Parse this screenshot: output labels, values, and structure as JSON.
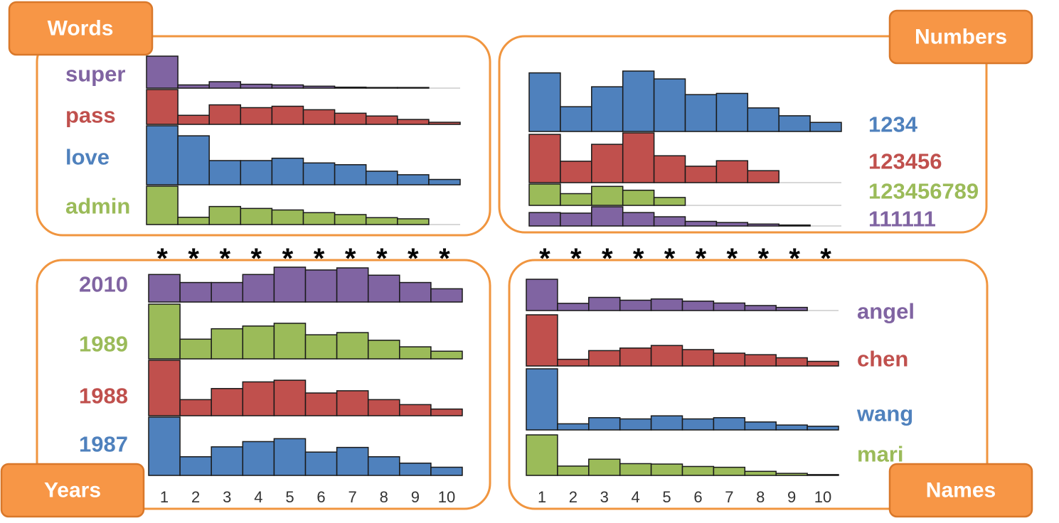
{
  "colors": {
    "purple": "#8064a2",
    "red": "#c0504d",
    "blue": "#4f81bd",
    "green": "#9bbb59",
    "tag_fill": "#f79646",
    "frame": "#f0953f"
  },
  "chart_data": [
    {
      "type": "bar",
      "panel": "words",
      "tag": "Words",
      "categories": [
        "1",
        "2",
        "3",
        "4",
        "5",
        "6",
        "7",
        "8",
        "9",
        "10"
      ],
      "significance_marks": [
        "*",
        "*",
        "*",
        "*",
        "*",
        "*",
        "*",
        "*",
        "*",
        "*"
      ],
      "series": [
        {
          "name": "super",
          "color": "#8064a2",
          "values": [
            1.0,
            0.1,
            0.2,
            0.12,
            0.1,
            0.06,
            0.03,
            0.02,
            0.02,
            0
          ]
        },
        {
          "name": "pass",
          "color": "#c0504d",
          "values": [
            1.0,
            0.26,
            0.56,
            0.48,
            0.52,
            0.42,
            0.32,
            0.24,
            0.14,
            0.06
          ]
        },
        {
          "name": "love",
          "color": "#4f81bd",
          "values": [
            1.0,
            0.83,
            0.41,
            0.41,
            0.45,
            0.37,
            0.34,
            0.23,
            0.17,
            0.09
          ]
        },
        {
          "name": "admin",
          "color": "#9bbb59",
          "values": [
            1.0,
            0.19,
            0.47,
            0.42,
            0.38,
            0.31,
            0.26,
            0.18,
            0.15,
            0
          ]
        }
      ]
    },
    {
      "type": "bar",
      "panel": "numbers",
      "tag": "Numbers",
      "categories": [
        "1",
        "2",
        "3",
        "4",
        "5",
        "6",
        "7",
        "8",
        "9",
        "10"
      ],
      "significance_marks": [
        "*",
        "*",
        "*",
        "*",
        "*",
        "*",
        "*",
        "*",
        "*",
        "*"
      ],
      "series": [
        {
          "name": "1234",
          "color": "#4f81bd",
          "values": [
            0.97,
            0.41,
            0.74,
            1.0,
            0.87,
            0.61,
            0.63,
            0.39,
            0.26,
            0.15
          ]
        },
        {
          "name": "123456",
          "color": "#c0504d",
          "values": [
            0.97,
            0.43,
            0.77,
            1.0,
            0.54,
            0.33,
            0.44,
            0.24,
            0,
            0
          ]
        },
        {
          "name": "123456789",
          "color": "#9bbb59",
          "values": [
            1.0,
            0.55,
            0.89,
            0.71,
            0.37,
            0,
            0,
            0,
            0,
            0
          ]
        },
        {
          "name": "111111",
          "color": "#8064a2",
          "values": [
            0.7,
            0.67,
            1.0,
            0.7,
            0.48,
            0.24,
            0.18,
            0.1,
            0.05,
            0
          ]
        }
      ]
    },
    {
      "type": "bar",
      "panel": "years",
      "tag": "Years",
      "categories": [
        "1",
        "2",
        "3",
        "4",
        "5",
        "6",
        "7",
        "8",
        "9",
        "10"
      ],
      "series": [
        {
          "name": "2010",
          "color": "#8064a2",
          "values": [
            0.79,
            0.56,
            0.56,
            0.79,
            1.0,
            0.92,
            0.98,
            0.77,
            0.56,
            0.38
          ]
        },
        {
          "name": "1989",
          "color": "#9bbb59",
          "values": [
            1.0,
            0.36,
            0.55,
            0.6,
            0.65,
            0.44,
            0.48,
            0.34,
            0.22,
            0.14
          ]
        },
        {
          "name": "1988",
          "color": "#c0504d",
          "values": [
            1.0,
            0.29,
            0.49,
            0.61,
            0.64,
            0.41,
            0.45,
            0.29,
            0.2,
            0.12
          ]
        },
        {
          "name": "1987",
          "color": "#4f81bd",
          "values": [
            1.0,
            0.32,
            0.49,
            0.58,
            0.63,
            0.4,
            0.48,
            0.32,
            0.21,
            0.14
          ]
        }
      ]
    },
    {
      "type": "bar",
      "panel": "names",
      "tag": "Names",
      "categories": [
        "1",
        "2",
        "3",
        "4",
        "5",
        "6",
        "7",
        "8",
        "9",
        "10"
      ],
      "series": [
        {
          "name": "angel",
          "color": "#8064a2",
          "values": [
            1.0,
            0.23,
            0.42,
            0.33,
            0.37,
            0.3,
            0.24,
            0.16,
            0.1,
            0
          ]
        },
        {
          "name": "chen",
          "color": "#c0504d",
          "values": [
            1.0,
            0.13,
            0.3,
            0.35,
            0.4,
            0.32,
            0.25,
            0.22,
            0.16,
            0.09
          ]
        },
        {
          "name": "wang",
          "color": "#4f81bd",
          "values": [
            1.0,
            0.1,
            0.2,
            0.18,
            0.23,
            0.18,
            0.2,
            0.13,
            0.08,
            0.06
          ]
        },
        {
          "name": "mari",
          "color": "#9bbb59",
          "values": [
            1.0,
            0.23,
            0.4,
            0.29,
            0.28,
            0.22,
            0.2,
            0.1,
            0.05,
            0.02
          ]
        }
      ]
    }
  ]
}
